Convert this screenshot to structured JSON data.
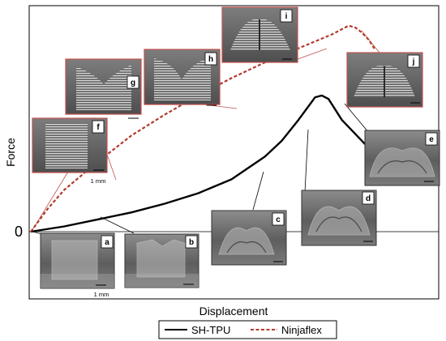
{
  "chart_data": {
    "type": "line",
    "xlabel": "Displacement",
    "ylabel": "Force",
    "y_origin_label": "0",
    "grid": false,
    "legend_position": "bottom",
    "series": [
      {
        "name": "SH-TPU",
        "color": "#000000",
        "dash": "solid",
        "x": [
          0,
          10,
          20,
          30,
          40,
          50,
          60,
          70,
          75,
          80,
          85,
          87,
          89,
          91,
          93,
          100
        ],
        "y": [
          0,
          3,
          7,
          11,
          16,
          22,
          30,
          43,
          52,
          64,
          77,
          78,
          76,
          70,
          64,
          50
        ]
      },
      {
        "name": "Ninjaflex",
        "color": "#b33a2b",
        "dash": "dashed",
        "x": [
          0,
          5,
          10,
          20,
          30,
          40,
          50,
          60,
          70,
          80,
          90,
          95,
          97,
          99,
          101,
          103
        ],
        "y": [
          0,
          13,
          24,
          40,
          55,
          67,
          78,
          88,
          97,
          105,
          113,
          118,
          117,
          114,
          110,
          104
        ]
      }
    ],
    "insets": [
      {
        "label": "a",
        "series": "SH-TPU",
        "scale_bar": "1 mm"
      },
      {
        "label": "b",
        "series": "SH-TPU"
      },
      {
        "label": "c",
        "series": "SH-TPU"
      },
      {
        "label": "d",
        "series": "SH-TPU"
      },
      {
        "label": "e",
        "series": "SH-TPU"
      },
      {
        "label": "f",
        "series": "Ninjaflex",
        "scale_bar": "1 mm"
      },
      {
        "label": "g",
        "series": "Ninjaflex"
      },
      {
        "label": "h",
        "series": "Ninjaflex"
      },
      {
        "label": "i",
        "series": "Ninjaflex"
      },
      {
        "label": "j",
        "series": "Ninjaflex"
      }
    ]
  },
  "colors": {
    "tpu_line": "#000000",
    "ninjaflex_line": "#b33a2b",
    "ninjaflex_leader": "#c0504d",
    "inset_border_tpu": "#333333",
    "inset_border_ninjaflex": "#c0504d"
  }
}
